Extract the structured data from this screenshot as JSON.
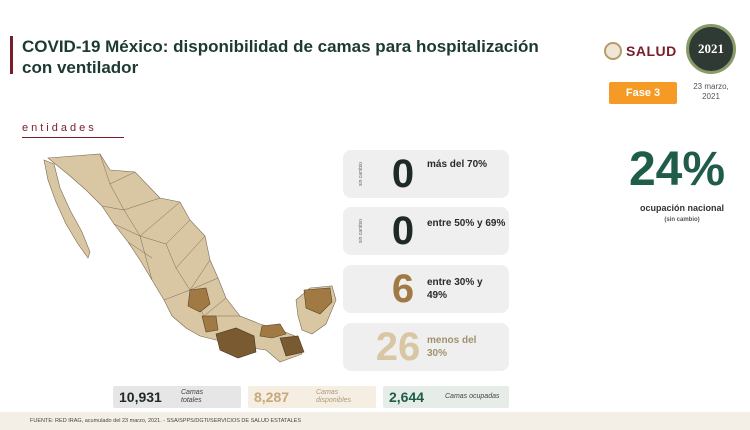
{
  "title": "COVID-19 México: disponibilidad de camas para hospitalización con ventilador",
  "logo": {
    "salud": "SALUD",
    "year": "2021"
  },
  "fase": "Fase 3",
  "date": "23 marzo, 2021",
  "section": "entidades",
  "cards": [
    {
      "side": "sin cambio",
      "value": "0",
      "label": "más del 70%",
      "color": "#1f2a26"
    },
    {
      "side": "sin cambio",
      "value": "0",
      "label": "entre 50% y 69%",
      "color": "#1f2a26"
    },
    {
      "side": "",
      "value": "6",
      "label": "entre 30% y 49%",
      "color": "#a07a42"
    },
    {
      "side": "",
      "value": "26",
      "label": "menos del 30%",
      "color": "#d9c6a2"
    }
  ],
  "national": {
    "value": "24%",
    "label": "ocupación nacional",
    "sub": "(sin cambio)"
  },
  "stats": {
    "total": {
      "value": "10,931",
      "label": "Camas totales"
    },
    "available": {
      "value": "8,287",
      "label": "Camas disponibles"
    },
    "occupied": {
      "value": "2,644",
      "label": "Camas ocupadas"
    }
  },
  "footer": "FUENTE: RED IRAG, acumulado del 23 marzo, 2021. - SSA/SPPS/DGTI/SERVICIOS DE SALUD ESTATALES",
  "colors": {
    "light": "#d9c6a2",
    "medium": "#a07a42",
    "dark": "#7a5a30",
    "title": "#1c3a33",
    "accent": "#7a1c2a"
  }
}
